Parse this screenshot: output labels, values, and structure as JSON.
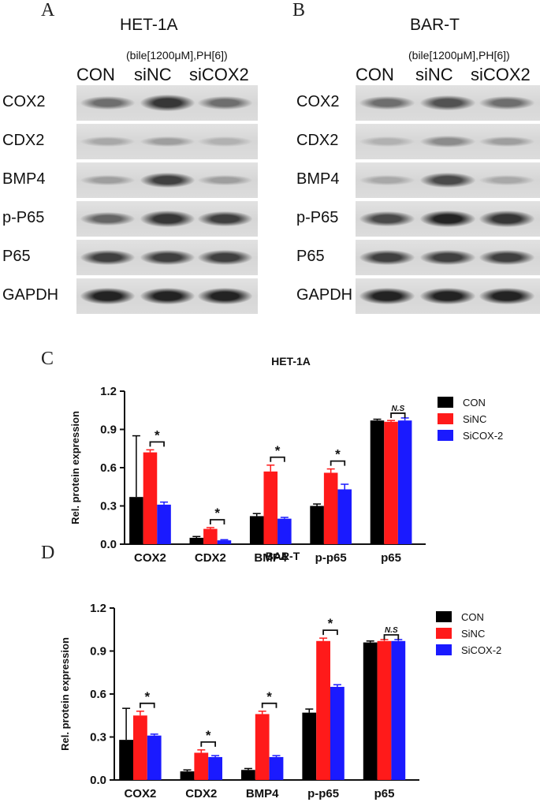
{
  "panels": {
    "A": {
      "letter": "A",
      "title": "HET-1A",
      "condition": "(bile[1200μM],PH[6])",
      "lanes": [
        "CON",
        "siNC",
        "siCOX2"
      ],
      "rows": [
        {
          "label": "COX2",
          "intensity": [
            0.55,
            0.85,
            0.55
          ]
        },
        {
          "label": "CDX2",
          "intensity": [
            0.25,
            0.3,
            0.2
          ]
        },
        {
          "label": "BMP4",
          "intensity": [
            0.3,
            0.8,
            0.3
          ]
        },
        {
          "label": "p-P65",
          "intensity": [
            0.6,
            0.85,
            0.8
          ]
        },
        {
          "label": "P65",
          "intensity": [
            0.8,
            0.8,
            0.8
          ]
        },
        {
          "label": "GAPDH",
          "intensity": [
            0.95,
            0.95,
            0.95
          ]
        }
      ]
    },
    "B": {
      "letter": "B",
      "title": "BAR-T",
      "condition": "(bile[1200μM],PH[6])",
      "lanes": [
        "CON",
        "siNC",
        "siCOX2"
      ],
      "rows": [
        {
          "label": "COX2",
          "intensity": [
            0.55,
            0.7,
            0.55
          ]
        },
        {
          "label": "CDX2",
          "intensity": [
            0.2,
            0.4,
            0.3
          ]
        },
        {
          "label": "BMP4",
          "intensity": [
            0.25,
            0.75,
            0.25
          ]
        },
        {
          "label": "p-P65",
          "intensity": [
            0.75,
            0.95,
            0.85
          ]
        },
        {
          "label": "P65",
          "intensity": [
            0.8,
            0.8,
            0.8
          ]
        },
        {
          "label": "GAPDH",
          "intensity": [
            0.95,
            0.95,
            0.95
          ]
        }
      ]
    },
    "C": {
      "letter": "C"
    },
    "D": {
      "letter": "D"
    }
  },
  "colors": {
    "CON": "#000000",
    "SiNC": "#ff1a1a",
    "SiCOX-2": "#1a1aff"
  },
  "chart_data": [
    {
      "type": "bar",
      "title": "HET-1A",
      "ylabel": "Rel. protein expression",
      "xlabel": "",
      "categories": [
        "COX2",
        "CDX2",
        "BMP4",
        "p-p65",
        "p65"
      ],
      "ylim": [
        0,
        1.2
      ],
      "yticks": [
        "0.0",
        "0.3",
        "0.6",
        "0.9",
        "1.2"
      ],
      "legend_position": "right",
      "series": [
        {
          "name": "CON",
          "values": [
            0.37,
            0.05,
            0.22,
            0.3,
            0.97
          ],
          "errors": [
            0.48,
            0.01,
            0.02,
            0.015,
            0.01
          ]
        },
        {
          "name": "SiNC",
          "values": [
            0.72,
            0.12,
            0.57,
            0.56,
            0.96
          ],
          "errors": [
            0.02,
            0.01,
            0.05,
            0.03,
            0.01
          ]
        },
        {
          "name": "SiCOX-2",
          "values": [
            0.31,
            0.03,
            0.2,
            0.43,
            0.97
          ],
          "errors": [
            0.02,
            0.005,
            0.01,
            0.04,
            0.02
          ]
        }
      ],
      "annotations": [
        "*",
        "*",
        "*",
        "*",
        "N.S"
      ]
    },
    {
      "type": "bar",
      "title": "BAR-T",
      "ylabel": "Rel. protein expression",
      "xlabel": "",
      "categories": [
        "COX2",
        "CDX2",
        "BMP4",
        "p-p65",
        "p65"
      ],
      "ylim": [
        0,
        1.2
      ],
      "yticks": [
        "0.0",
        "0.3",
        "0.6",
        "0.9",
        "1.2"
      ],
      "legend_position": "right",
      "series": [
        {
          "name": "CON",
          "values": [
            0.28,
            0.06,
            0.07,
            0.47,
            0.96
          ],
          "errors": [
            0.22,
            0.01,
            0.01,
            0.025,
            0.01
          ]
        },
        {
          "name": "SiNC",
          "values": [
            0.45,
            0.19,
            0.46,
            0.97,
            0.97
          ],
          "errors": [
            0.03,
            0.02,
            0.02,
            0.02,
            0.01
          ]
        },
        {
          "name": "SiCOX-2",
          "values": [
            0.31,
            0.16,
            0.16,
            0.65,
            0.97
          ],
          "errors": [
            0.01,
            0.01,
            0.01,
            0.015,
            0.01
          ]
        }
      ],
      "annotations": [
        "*",
        "*",
        "*",
        "*",
        "N.S"
      ]
    }
  ]
}
